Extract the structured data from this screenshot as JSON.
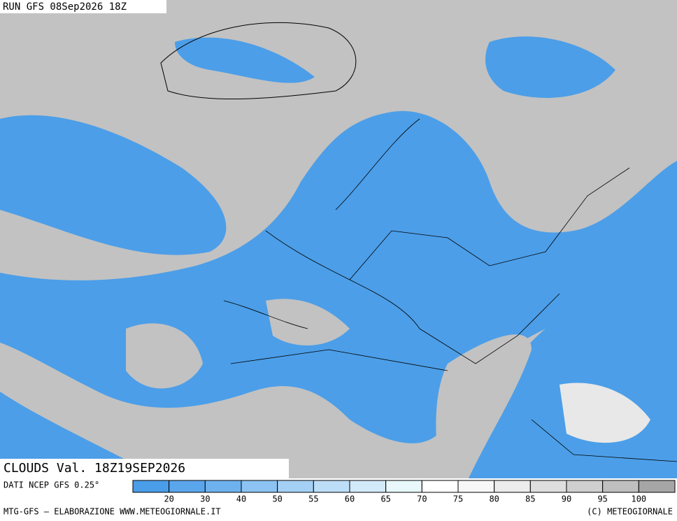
{
  "header": {
    "run": "RUN GFS 08Sep2026 18Z"
  },
  "map": {
    "label": "CLOUDS Val. 18Z19SEP2026"
  },
  "legend": {
    "source": "DATI NCEP GFS 0.25°",
    "colors": [
      "#4a9de8",
      "#5aa6ec",
      "#6eb1ef",
      "#8cc3f2",
      "#a5d0f5",
      "#bddef7",
      "#d3eafa",
      "#e8f8fb",
      "#ffffff",
      "#f7f7f7",
      "#ececec",
      "#dedede",
      "#cfcfcf",
      "#bfbfbf",
      "#a6a6a6"
    ],
    "ticks": [
      20,
      30,
      40,
      50,
      55,
      60,
      65,
      70,
      75,
      80,
      85,
      90,
      95,
      100
    ]
  },
  "footer": {
    "left": "MTG-GFS — ELABORAZIONE WWW.METEOGIORNALE.IT",
    "right": "(C) METEOGIORNALE"
  }
}
